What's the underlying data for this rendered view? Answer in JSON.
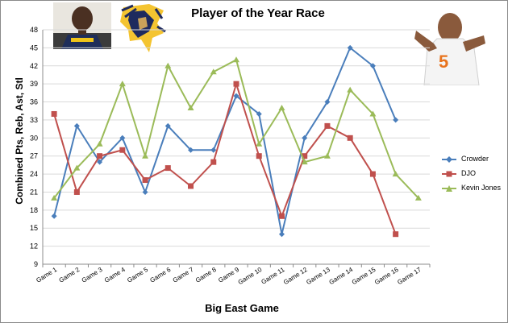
{
  "title": "Player of the Year Race",
  "chart_data": {
    "type": "line",
    "title": "Player of the Year Race",
    "xlabel": "Big East Game",
    "ylabel": "Combined Pts, Reb, Ast, Stl",
    "ylim": [
      9,
      48
    ],
    "yticks": [
      9,
      12,
      15,
      18,
      21,
      24,
      27,
      30,
      33,
      36,
      39,
      42,
      45,
      48
    ],
    "grid": "horizontal",
    "legend_position": "right",
    "categories": [
      "Game 1",
      "Game 2",
      "Game 3",
      "Game 4",
      "Game 5",
      "Game 6",
      "Game 7",
      "Game 8",
      "Game 9",
      "Game 10",
      "Game 11",
      "Game 12",
      "Game 13",
      "Game 14",
      "Game 15",
      "Game 16",
      "Game 17"
    ],
    "series": [
      {
        "name": "Crowder",
        "color": "#4a7ebb",
        "marker": "diamond",
        "values": [
          17,
          32,
          26,
          30,
          21,
          32,
          28,
          28,
          37,
          34,
          14,
          30,
          36,
          45,
          42,
          33,
          null
        ]
      },
      {
        "name": "DJO",
        "color": "#c0504d",
        "marker": "square",
        "values": [
          34,
          21,
          27,
          28,
          23,
          25,
          22,
          26,
          39,
          27,
          17,
          27,
          32,
          30,
          24,
          14,
          null
        ]
      },
      {
        "name": "Kevin Jones",
        "color": "#9bbb59",
        "marker": "triangle",
        "values": [
          20,
          25,
          29,
          39,
          27,
          42,
          35,
          41,
          43,
          29,
          35,
          26,
          27,
          38,
          34,
          24,
          20
        ]
      }
    ]
  },
  "photos": [
    {
      "name": "player-photo-crowder"
    },
    {
      "name": "logo-marquette"
    },
    {
      "name": "player-photo-kevin-jones"
    }
  ]
}
